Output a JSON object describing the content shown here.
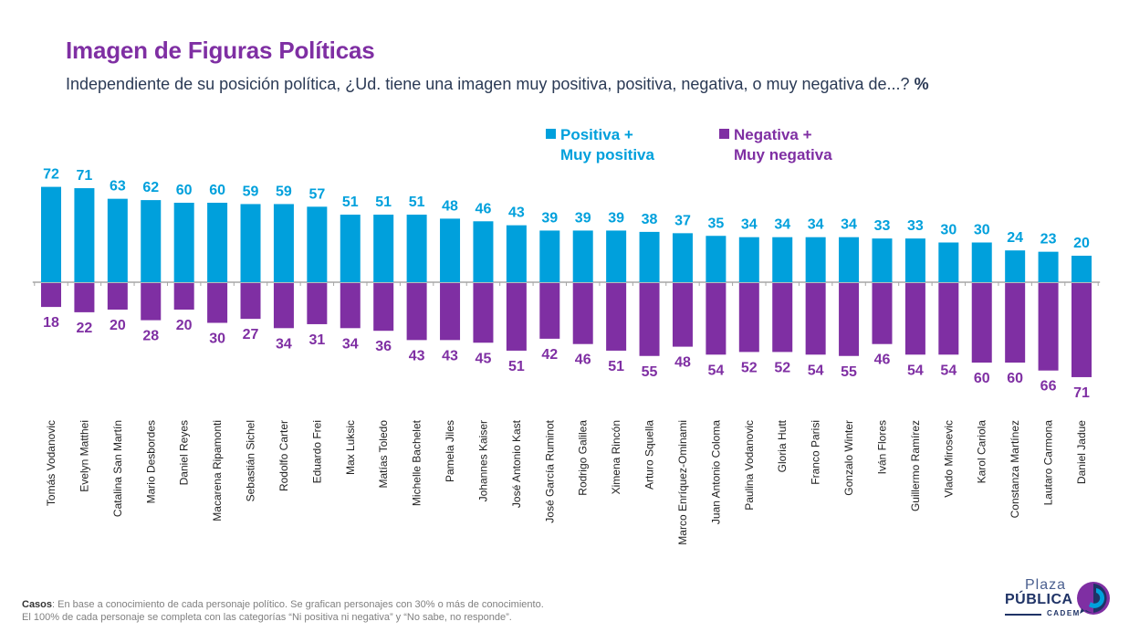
{
  "header": {
    "title": "Imagen de Figuras Políticas",
    "subtitle": "Independiente de su posición política, ¿Ud. tiene una imagen muy positiva, positiva, negativa, o muy negativa de...?",
    "subtitle_unit": "%"
  },
  "colors": {
    "positive": "#00a0dc",
    "negative": "#7f2fa3",
    "title": "#7f2fa3",
    "axis": "#a6a6a6"
  },
  "chart_data": {
    "type": "bar",
    "title": "Imagen de Figuras Políticas",
    "xlabel": "",
    "ylabel": "%",
    "legend_position": "top-right",
    "categories": [
      "Tomás Vodanovic",
      "Evelyn Matthei",
      "Catalina San Martín",
      "Mario Desbordes",
      "Daniel Reyes",
      "Macarena Ripamonti",
      "Sebastián Sichel",
      "Rodolfo Carter",
      "Eduardo Frei",
      "Max Luksic",
      "Matías Toledo",
      "Michelle Bachelet",
      "Pamela Jiles",
      "Johannes Kaiser",
      "José Antonio Kast",
      "José García Ruminot",
      "Rodrigo Galilea",
      "Ximena Rincón",
      "Arturo Squella",
      "Marco Enríquez-Ominami",
      "Juan Antonio Coloma",
      "Paulina Vodanovic",
      "Gloria Hutt",
      "Franco Parisi",
      "Gonzalo Winter",
      "Iván Flores",
      "Guillermo Ramírez",
      "Vlado Mirosevic",
      "Karol Cariola",
      "Constanza Martínez",
      "Lautaro Carmona",
      "Daniel Jadue"
    ],
    "series": [
      {
        "name": "Positiva + Muy positiva",
        "legend_line1": "Positiva +",
        "legend_line2": "Muy positiva",
        "values": [
          72,
          71,
          63,
          62,
          60,
          60,
          59,
          59,
          57,
          51,
          51,
          51,
          48,
          46,
          43,
          39,
          39,
          39,
          38,
          37,
          35,
          34,
          34,
          34,
          34,
          33,
          33,
          30,
          30,
          24,
          23,
          20
        ]
      },
      {
        "name": "Negativa + Muy negativa",
        "legend_line1": "Negativa +",
        "legend_line2": "Muy negativa",
        "values": [
          18,
          22,
          20,
          28,
          20,
          30,
          27,
          34,
          31,
          34,
          36,
          43,
          43,
          45,
          51,
          42,
          46,
          51,
          55,
          48,
          54,
          52,
          52,
          54,
          55,
          46,
          54,
          54,
          60,
          60,
          66,
          71
        ]
      }
    ],
    "ylim": [
      -75,
      75
    ],
    "grid": false
  },
  "footnote": {
    "label": "Casos",
    "line1": ": En base a conocimiento de cada personaje político. Se grafican personajes con 30% o más de conocimiento.",
    "line2": "El 100% de cada personaje se completa con las categorías “Ni positiva ni negativa” y “No sabe, no responde”."
  },
  "logo": {
    "line1": "Plaza",
    "line2": "PÚBLICA",
    "line3": "CADEM"
  }
}
